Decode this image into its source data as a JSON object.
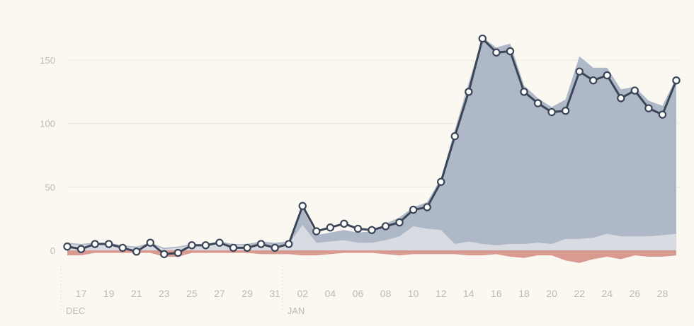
{
  "chart_data": {
    "type": "area",
    "title": "",
    "xlabel": "",
    "ylabel": "",
    "ylim": [
      -12,
      170
    ],
    "y_ticks": [
      0,
      50,
      100,
      150
    ],
    "grid": true,
    "legend": "none",
    "x": [
      "2016-12-16",
      "2016-12-17",
      "2016-12-18",
      "2016-12-19",
      "2016-12-20",
      "2016-12-21",
      "2016-12-22",
      "2016-12-23",
      "2016-12-24",
      "2016-12-25",
      "2016-12-26",
      "2016-12-27",
      "2016-12-28",
      "2016-12-29",
      "2016-12-30",
      "2016-12-31",
      "2017-01-01",
      "2017-01-02",
      "2017-01-03",
      "2017-01-04",
      "2017-01-05",
      "2017-01-06",
      "2017-01-07",
      "2017-01-08",
      "2017-01-09",
      "2017-01-10",
      "2017-01-11",
      "2017-01-12",
      "2017-01-13",
      "2017-01-14",
      "2017-01-15",
      "2017-01-16",
      "2017-01-17",
      "2017-01-18",
      "2017-01-19",
      "2017-01-20",
      "2017-01-21",
      "2017-01-22",
      "2017-01-23",
      "2017-01-24",
      "2017-01-25",
      "2017-01-26",
      "2017-01-27",
      "2017-01-28",
      "2017-01-29"
    ],
    "x_tick_labels": [
      {
        "date": "2016-12-17",
        "label": "17"
      },
      {
        "date": "2016-12-19",
        "label": "19"
      },
      {
        "date": "2016-12-21",
        "label": "21"
      },
      {
        "date": "2016-12-23",
        "label": "23"
      },
      {
        "date": "2016-12-25",
        "label": "25"
      },
      {
        "date": "2016-12-27",
        "label": "27"
      },
      {
        "date": "2016-12-29",
        "label": "29"
      },
      {
        "date": "2016-12-31",
        "label": "31"
      },
      {
        "date": "2017-01-02",
        "label": "02"
      },
      {
        "date": "2017-01-04",
        "label": "04"
      },
      {
        "date": "2017-01-06",
        "label": "06"
      },
      {
        "date": "2017-01-08",
        "label": "08"
      },
      {
        "date": "2017-01-10",
        "label": "10"
      },
      {
        "date": "2017-01-12",
        "label": "12"
      },
      {
        "date": "2017-01-14",
        "label": "14"
      },
      {
        "date": "2017-01-16",
        "label": "16"
      },
      {
        "date": "2017-01-18",
        "label": "18"
      },
      {
        "date": "2017-01-20",
        "label": "20"
      },
      {
        "date": "2017-01-22",
        "label": "22"
      },
      {
        "date": "2017-01-24",
        "label": "24"
      },
      {
        "date": "2017-01-26",
        "label": "26"
      },
      {
        "date": "2017-01-28",
        "label": "28"
      }
    ],
    "month_labels": [
      {
        "date": "2016-12-16",
        "label": "DEC"
      },
      {
        "date": "2017-01-01",
        "label": "JAN"
      }
    ],
    "series": [
      {
        "role": "line",
        "values": [
          3,
          1,
          5,
          5,
          2,
          -1,
          6,
          -3,
          -2,
          4,
          4,
          6,
          2,
          2,
          5,
          2,
          5,
          35,
          15,
          18,
          21,
          17,
          16,
          19,
          22,
          32,
          34,
          54,
          90,
          125,
          167,
          156,
          157,
          125,
          116,
          109,
          110,
          141,
          134,
          138,
          120,
          126,
          112,
          107,
          134
        ]
      },
      {
        "role": "upper-area",
        "values": [
          6,
          5,
          6,
          6,
          4,
          3,
          6,
          2,
          3,
          5,
          5,
          7,
          5,
          5,
          7,
          6,
          7,
          33,
          12,
          14,
          16,
          14,
          15,
          21,
          26,
          34,
          38,
          57,
          95,
          132,
          168,
          160,
          163,
          130,
          120,
          113,
          119,
          153,
          144,
          144,
          127,
          129,
          118,
          114,
          136
        ]
      },
      {
        "role": "lower-area",
        "values": [
          5,
          4,
          5,
          5,
          3,
          2,
          5,
          1,
          2,
          4,
          4,
          5,
          4,
          4,
          5,
          4,
          5,
          20,
          6,
          7,
          8,
          6,
          6,
          8,
          11,
          19,
          17,
          16,
          5,
          7,
          5,
          4,
          5,
          5,
          6,
          5,
          9,
          9,
          10,
          13,
          11,
          11,
          11,
          12,
          13
        ]
      },
      {
        "role": "negative-area",
        "values": [
          -4,
          -4,
          -2,
          -2,
          -2,
          -2,
          -2,
          -5,
          -5,
          -2,
          -2,
          -2,
          -2,
          -2,
          -3,
          -3,
          -3,
          -4,
          -4,
          -3,
          -2,
          -2,
          -2,
          -3,
          -4,
          -3,
          -3,
          -3,
          -3,
          -4,
          -4,
          -3,
          -5,
          -6,
          -4,
          -4,
          -8,
          -10,
          -7,
          -5,
          -7,
          -4,
          -5,
          -5,
          -4
        ]
      }
    ],
    "colors": {
      "background": "#fbf8f2",
      "upper_area": "#afb8c7",
      "lower_area": "#d8dbe1",
      "negative_area": "#d99a91",
      "line": "#3b4658",
      "marker_fill": "#ffffff",
      "grid": "#ebe7df",
      "tick_label": "#bdbab4"
    }
  }
}
